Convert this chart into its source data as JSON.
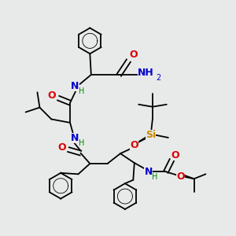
{
  "background_color": "#e8eaea",
  "fig_width": 3.0,
  "fig_height": 3.0,
  "dpi": 100,
  "bond_lw": 1.3,
  "benzene_r": 0.055,
  "atoms": {
    "O_amide": {
      "label": "O",
      "color": "#dd0000",
      "fs": 9
    },
    "O_leu": {
      "label": "O",
      "color": "#dd0000",
      "fs": 9
    },
    "O_si": {
      "label": "O",
      "color": "#dd0000",
      "fs": 9
    },
    "O_boc1": {
      "label": "O",
      "color": "#dd0000",
      "fs": 9
    },
    "O_boc2": {
      "label": "O",
      "color": "#dd0000",
      "fs": 9
    },
    "N_phe": {
      "label": "N",
      "color": "#0000cc",
      "fs": 9
    },
    "H_nphe": {
      "label": "H",
      "color": "#008800",
      "fs": 7
    },
    "N_leu": {
      "label": "N",
      "color": "#0000cc",
      "fs": 9
    },
    "H_nleu": {
      "label": "H",
      "color": "#008800",
      "fs": 7
    },
    "N_main": {
      "label": "N",
      "color": "#0000cc",
      "fs": 9
    },
    "H_nmain": {
      "label": "H",
      "color": "#008800",
      "fs": 7
    },
    "N_boc": {
      "label": "N",
      "color": "#0000cc",
      "fs": 9
    },
    "H_nboc": {
      "label": "H",
      "color": "#008800",
      "fs": 7
    },
    "NH2_N": {
      "label": "NH",
      "color": "#0000cc",
      "fs": 9
    },
    "NH2_2": {
      "label": "2",
      "color": "#0000cc",
      "fs": 7
    },
    "Si": {
      "label": "Si",
      "color": "#cc8800",
      "fs": 9
    }
  }
}
